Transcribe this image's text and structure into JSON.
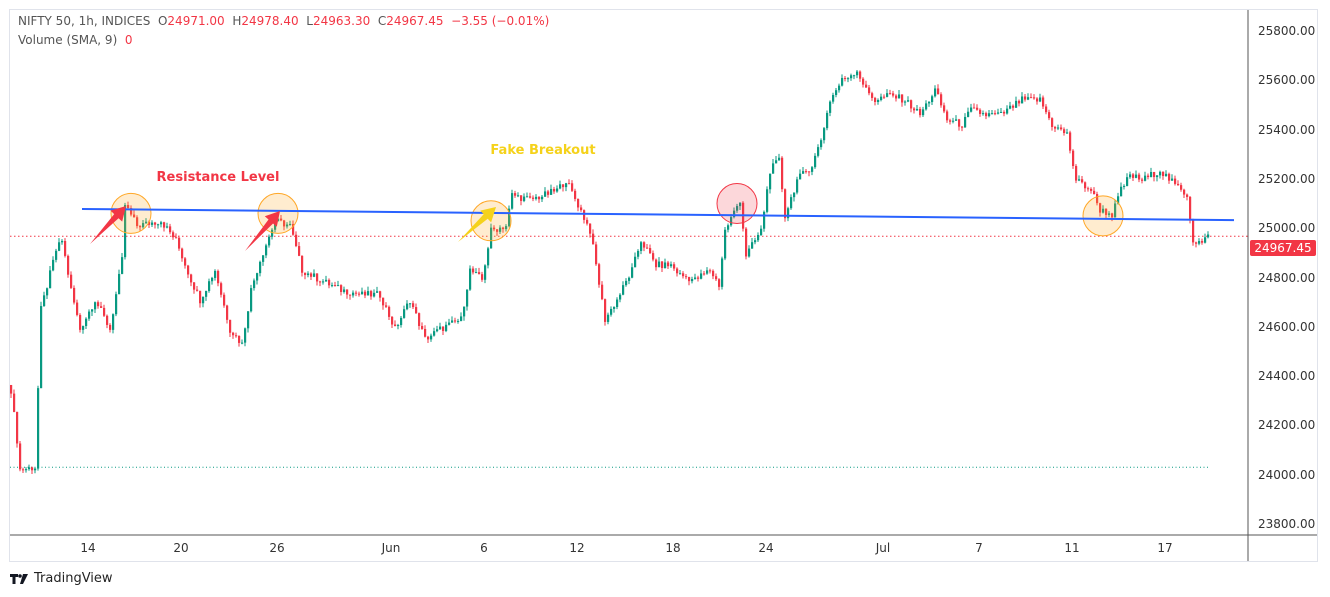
{
  "legend": {
    "symbol": "NIFTY 50, 1h, INDICES",
    "open_label": "O",
    "open": "24971.00",
    "high_label": "H",
    "high": "24978.40",
    "low_label": "L",
    "low": "24963.30",
    "close_label": "C",
    "close": "24967.45",
    "change": "−3.55 (−0.01%)",
    "volume_label": "Volume (SMA, 9)",
    "volume_value": "0"
  },
  "last_price": "24967.45",
  "brand": "TradingView",
  "colors": {
    "up": "#089981",
    "down": "#f23645",
    "trendline": "#2962ff",
    "resistance_text": "#f23645",
    "fake_text": "#f5d21b"
  },
  "annotations": {
    "resistance": "Resistance Level",
    "fake_breakout": "Fake Breakout"
  },
  "chart_data": {
    "type": "candlestick",
    "title": "NIFTY 50, 1h, INDICES",
    "ylim": [
      23750,
      25880
    ],
    "y_ticks": [
      "25800.00",
      "25600.00",
      "25400.00",
      "25200.00",
      "25000.00",
      "24800.00",
      "24600.00",
      "24400.00",
      "24200.00",
      "24000.00",
      "23800.00"
    ],
    "x_ticks": [
      {
        "label": "14",
        "index": 26
      },
      {
        "label": "20",
        "index": 57
      },
      {
        "label": "26",
        "index": 89
      },
      {
        "label": "Jun",
        "index": 127
      },
      {
        "label": "6",
        "index": 158
      },
      {
        "label": "12",
        "index": 189
      },
      {
        "label": "18",
        "index": 221
      },
      {
        "label": "24",
        "index": 252
      },
      {
        "label": "Jul",
        "index": 291
      },
      {
        "label": "7",
        "index": 323
      },
      {
        "label": "11",
        "index": 354
      },
      {
        "label": "17",
        "index": 385
      }
    ],
    "candle_count": 400,
    "price_path": [
      [
        0,
        24344
      ],
      [
        2,
        24140
      ],
      [
        3,
        24020
      ],
      [
        8,
        24030
      ],
      [
        10,
        24670
      ],
      [
        15,
        24910
      ],
      [
        17,
        24950
      ],
      [
        20,
        24750
      ],
      [
        23,
        24590
      ],
      [
        28,
        24710
      ],
      [
        33,
        24590
      ],
      [
        37,
        24870
      ],
      [
        38,
        25095
      ],
      [
        42,
        25010
      ],
      [
        50,
        25030
      ],
      [
        55,
        24950
      ],
      [
        60,
        24790
      ],
      [
        63,
        24710
      ],
      [
        68,
        24830
      ],
      [
        73,
        24590
      ],
      [
        77,
        24530
      ],
      [
        80,
        24750
      ],
      [
        83,
        24870
      ],
      [
        88,
        25030
      ],
      [
        93,
        25010
      ],
      [
        97,
        24830
      ],
      [
        103,
        24790
      ],
      [
        110,
        24750
      ],
      [
        117,
        24730
      ],
      [
        123,
        24730
      ],
      [
        128,
        24590
      ],
      [
        133,
        24710
      ],
      [
        138,
        24550
      ],
      [
        143,
        24590
      ],
      [
        150,
        24630
      ],
      [
        153,
        24830
      ],
      [
        157,
        24790
      ],
      [
        160,
        24990
      ],
      [
        165,
        25010
      ],
      [
        167,
        25135
      ],
      [
        173,
        25115
      ],
      [
        178,
        25135
      ],
      [
        182,
        25155
      ],
      [
        185,
        25195
      ],
      [
        190,
        25070
      ],
      [
        193,
        24990
      ],
      [
        195,
        24850
      ],
      [
        198,
        24630
      ],
      [
        202,
        24710
      ],
      [
        207,
        24830
      ],
      [
        210,
        24950
      ],
      [
        215,
        24850
      ],
      [
        220,
        24850
      ],
      [
        223,
        24810
      ],
      [
        228,
        24790
      ],
      [
        233,
        24830
      ],
      [
        236,
        24770
      ],
      [
        238,
        24990
      ],
      [
        243,
        25115
      ],
      [
        245,
        24890
      ],
      [
        250,
        24990
      ],
      [
        253,
        25235
      ],
      [
        256,
        25275
      ],
      [
        258,
        25050
      ],
      [
        262,
        25195
      ],
      [
        267,
        25255
      ],
      [
        270,
        25360
      ],
      [
        273,
        25520
      ],
      [
        277,
        25600
      ],
      [
        282,
        25640
      ],
      [
        285,
        25560
      ],
      [
        288,
        25520
      ],
      [
        293,
        25540
      ],
      [
        298,
        25520
      ],
      [
        303,
        25460
      ],
      [
        308,
        25560
      ],
      [
        312,
        25440
      ],
      [
        317,
        25420
      ],
      [
        320,
        25480
      ],
      [
        325,
        25460
      ],
      [
        330,
        25460
      ],
      [
        337,
        25520
      ],
      [
        343,
        25520
      ],
      [
        347,
        25420
      ],
      [
        352,
        25380
      ],
      [
        355,
        25195
      ],
      [
        360,
        25155
      ],
      [
        363,
        25075
      ],
      [
        367,
        25055
      ],
      [
        370,
        25155
      ],
      [
        373,
        25215
      ],
      [
        377,
        25195
      ],
      [
        383,
        25235
      ],
      [
        388,
        25175
      ],
      [
        392,
        25135
      ],
      [
        394,
        24950
      ],
      [
        397,
        24940
      ],
      [
        399,
        24967
      ]
    ],
    "resistance_line": {
      "from": [
        24,
        25078
      ],
      "to": [
        408,
        25033
      ]
    },
    "last_price_line": 24967.45,
    "reference_line": 24030,
    "markers": [
      {
        "index": 40,
        "price": 25060,
        "color": "orange"
      },
      {
        "index": 89,
        "price": 25060,
        "color": "orange"
      },
      {
        "index": 160,
        "price": 25030,
        "color": "orange"
      },
      {
        "index": 242,
        "price": 25100,
        "color": "pink"
      },
      {
        "index": 364,
        "price": 25050,
        "color": "orange"
      }
    ]
  }
}
